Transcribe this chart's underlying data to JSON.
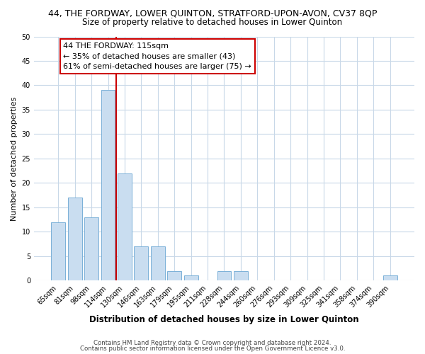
{
  "title": "44, THE FORDWAY, LOWER QUINTON, STRATFORD-UPON-AVON, CV37 8QP",
  "subtitle": "Size of property relative to detached houses in Lower Quinton",
  "xlabel": "Distribution of detached houses by size in Lower Quinton",
  "ylabel": "Number of detached properties",
  "bar_labels": [
    "65sqm",
    "81sqm",
    "98sqm",
    "114sqm",
    "130sqm",
    "146sqm",
    "163sqm",
    "179sqm",
    "195sqm",
    "211sqm",
    "228sqm",
    "244sqm",
    "260sqm",
    "276sqm",
    "293sqm",
    "309sqm",
    "325sqm",
    "341sqm",
    "358sqm",
    "374sqm",
    "390sqm"
  ],
  "bar_values": [
    12,
    17,
    13,
    39,
    22,
    7,
    7,
    2,
    1,
    0,
    2,
    2,
    0,
    0,
    0,
    0,
    0,
    0,
    0,
    0,
    1
  ],
  "bar_color": "#c9ddf0",
  "bar_edge_color": "#7ab0d8",
  "vline_x_index": 4,
  "vline_color": "#cc0000",
  "ylim": [
    0,
    50
  ],
  "yticks": [
    0,
    5,
    10,
    15,
    20,
    25,
    30,
    35,
    40,
    45,
    50
  ],
  "annotation_title": "44 THE FORDWAY: 115sqm",
  "annotation_line1": "← 35% of detached houses are smaller (43)",
  "annotation_line2": "61% of semi-detached houses are larger (75) →",
  "annotation_box_color": "#ffffff",
  "annotation_box_edge": "#cc0000",
  "footer1": "Contains HM Land Registry data © Crown copyright and database right 2024.",
  "footer2": "Contains public sector information licensed under the Open Government Licence v3.0.",
  "background_color": "#ffffff",
  "grid_color": "#c8d8e8"
}
